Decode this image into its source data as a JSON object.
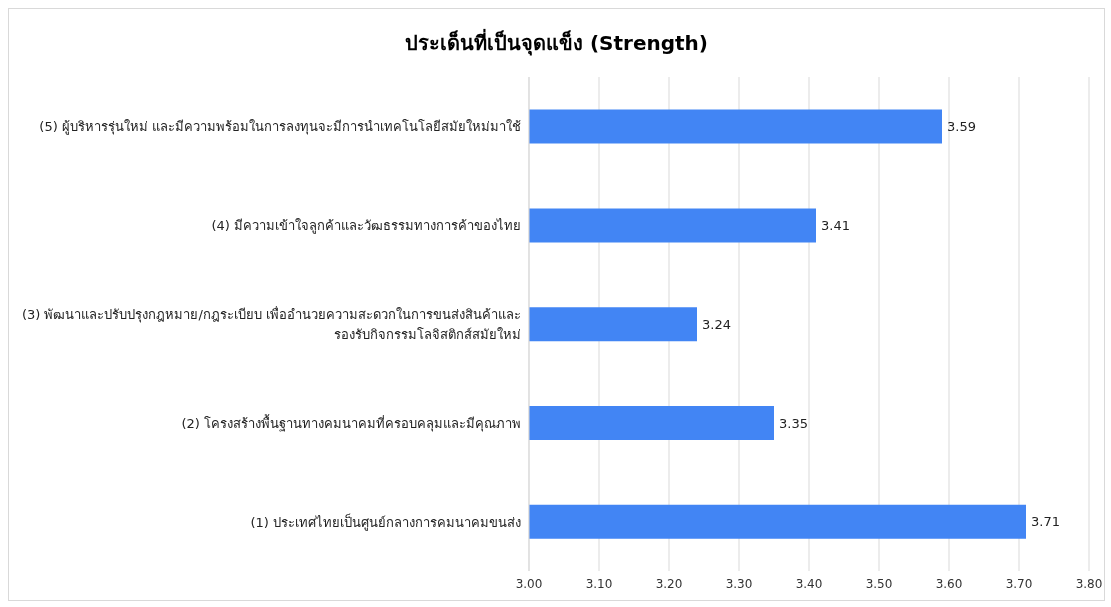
{
  "chart_data": {
    "type": "bar",
    "orientation": "horizontal",
    "title": "ประเด็นที่เป็นจุดแข็ง (Strength)",
    "categories": [
      "(5) ผู้บริหารรุ่นใหม่ และมีความพร้อมในการลงทุนจะมีการนำเทคโนโลยีสมัยใหม่มาใช้",
      "(4) มีความเข้าใจลูกค้าและวัฒธรรมทางการค้าของไทย",
      "(3) พัฒนาและปรับปรุงกฎหมาย/กฎระเบียบ เพื่ออำนวยความสะดวกในการขนส่งสินค้าและ รองรับกิจกรรมโลจิสติกส์สมัยใหม่",
      "(2) โครงสร้างพื้นฐานทางคมนาคมที่ครอบคลุมและมีคุณภาพ",
      "(1) ประเทศไทยเป็นศูนย์กลางการคมนาคมขนส่ง"
    ],
    "values": [
      3.59,
      3.41,
      3.24,
      3.35,
      3.71
    ],
    "color": "#4285f4",
    "xlim": [
      3,
      3.8
    ],
    "xticks": [
      {
        "value": 3,
        "label": "3.00"
      },
      {
        "value": 3.1,
        "label": "3.10"
      },
      {
        "value": 3.2,
        "label": "3.20"
      },
      {
        "value": 3.3,
        "label": "3.30"
      },
      {
        "value": 3.4,
        "label": "3.40"
      },
      {
        "value": 3.5,
        "label": "3.50"
      },
      {
        "value": 3.6,
        "label": "3.60"
      },
      {
        "value": 3.7,
        "label": "3.70"
      },
      {
        "value": 3.8,
        "label": "3.80"
      }
    ],
    "grid": "x",
    "data_labels": true,
    "legend": false
  }
}
